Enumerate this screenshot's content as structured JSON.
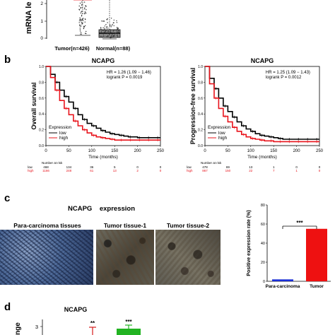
{
  "panel_labels": {
    "b": "b",
    "c": "c",
    "d": "d"
  },
  "colors": {
    "low": "#000000",
    "high": "#e8141c",
    "normal_box": "#222222",
    "tumor_box": "#e8141c",
    "bar_para": "#1a2fd6",
    "bar_tumor": "#ee1111",
    "d_tumor": "#d61a1a",
    "d_green": "#22b322"
  },
  "chart_data": [
    {
      "type": "box",
      "panel": "a",
      "ylabel": "mRNA le",
      "yticks": [
        "2",
        "1",
        "0"
      ],
      "categories": [
        "Tumor(n=426)",
        "Normal(n=88)"
      ]
    },
    {
      "type": "line",
      "panel": "b-left",
      "title": "NCAPG",
      "ylabel": "Overall survival",
      "xlabel": "Time (months)",
      "xlim": [
        0,
        250
      ],
      "ylim": [
        0,
        1
      ],
      "xticks": [
        "0",
        "50",
        "100",
        "150",
        "200",
        "250"
      ],
      "yticks": [
        "0.0",
        "0.2",
        "0.4",
        "0.6",
        "0.8",
        "1.0"
      ],
      "annotations": [
        "HR = 1.26 (1.09 − 1.46)",
        "logrank P = 0.0019"
      ],
      "legend_title": "Expression",
      "series": [
        {
          "name": "low",
          "x": [
            0,
            10,
            20,
            30,
            40,
            50,
            60,
            70,
            80,
            90,
            100,
            110,
            120,
            130,
            140,
            150,
            160,
            170,
            180,
            190,
            200,
            210,
            220,
            230,
            240,
            250
          ],
          "y": [
            1.0,
            0.9,
            0.8,
            0.7,
            0.62,
            0.55,
            0.47,
            0.39,
            0.33,
            0.28,
            0.25,
            0.22,
            0.19,
            0.17,
            0.15,
            0.14,
            0.13,
            0.12,
            0.11,
            0.11,
            0.1,
            0.1,
            0.1,
            0.1,
            0.1,
            0.1
          ]
        },
        {
          "name": "high",
          "x": [
            0,
            10,
            20,
            30,
            40,
            50,
            60,
            70,
            80,
            90,
            100,
            110,
            120,
            130,
            140,
            150,
            160,
            170,
            180,
            190,
            200,
            210,
            220,
            230,
            240,
            250
          ],
          "y": [
            1.0,
            0.86,
            0.7,
            0.57,
            0.47,
            0.39,
            0.31,
            0.25,
            0.2,
            0.16,
            0.13,
            0.11,
            0.1,
            0.09,
            0.08,
            0.07,
            0.07,
            0.07,
            0.07,
            0.07,
            0.07,
            0.07,
            0.07,
            0.07,
            0.07,
            0.07
          ]
        }
      ],
      "risk_table": {
        "header": "Number at risk",
        "rows": [
          {
            "label": "low",
            "values": [
              "468",
              "134",
              "36",
              "5",
              "0",
              "0"
            ]
          },
          {
            "label": "high",
            "values": [
              "1166",
              "248",
              "61",
              "13",
              "2",
              "0"
            ]
          }
        ]
      }
    },
    {
      "type": "line",
      "panel": "b-right",
      "title": "NCAPG",
      "ylabel": "Progression-free survival",
      "xlabel": "Time (months)",
      "xlim": [
        0,
        250
      ],
      "ylim": [
        0,
        1
      ],
      "xticks": [
        "0",
        "50",
        "100",
        "150",
        "200",
        "250"
      ],
      "yticks": [
        "0.0",
        "0.2",
        "0.4",
        "0.6",
        "0.8",
        "1.0"
      ],
      "annotations": [
        "HR = 1.25 (1.09 − 1.43)",
        "logrank P = 0.0012"
      ],
      "legend_title": "Expression",
      "series": [
        {
          "name": "low",
          "x": [
            0,
            10,
            20,
            30,
            40,
            50,
            60,
            70,
            80,
            90,
            100,
            110,
            120,
            130,
            140,
            150,
            160,
            170,
            180,
            190,
            200,
            210,
            220,
            230,
            240,
            250
          ],
          "y": [
            1.0,
            0.85,
            0.72,
            0.6,
            0.5,
            0.43,
            0.36,
            0.3,
            0.25,
            0.21,
            0.18,
            0.15,
            0.13,
            0.12,
            0.11,
            0.1,
            0.09,
            0.08,
            0.08,
            0.08,
            0.08,
            0.08,
            0.08,
            0.08,
            0.08,
            0.08
          ]
        },
        {
          "name": "high",
          "x": [
            0,
            10,
            20,
            30,
            40,
            50,
            60,
            70,
            80,
            90,
            100,
            110,
            120,
            130,
            140,
            150,
            160,
            170,
            180,
            190,
            200,
            210,
            220,
            230,
            240,
            250
          ],
          "y": [
            1.0,
            0.78,
            0.6,
            0.47,
            0.37,
            0.3,
            0.23,
            0.18,
            0.14,
            0.11,
            0.09,
            0.08,
            0.07,
            0.06,
            0.06,
            0.05,
            0.05,
            0.05,
            0.05,
            0.05,
            0.05,
            0.05,
            0.05,
            0.05,
            0.05,
            0.05
          ]
        }
      ],
      "risk_table": {
        "header": "Number at risk",
        "rows": [
          {
            "label": "low",
            "values": [
              "478",
              "69",
              "13",
              "1",
              "0",
              "0"
            ]
          },
          {
            "label": "high",
            "values": [
              "867",
              "150",
              "22",
              "7",
              "1",
              "0"
            ]
          }
        ]
      }
    },
    {
      "type": "bar",
      "panel": "c-right",
      "ylabel": "Positive expression rate (%)",
      "categories": [
        "Para-carcinoma",
        "Tumor"
      ],
      "values": [
        2,
        55
      ],
      "ylim": [
        0,
        80
      ],
      "yticks": [
        "0",
        "20",
        "40",
        "60",
        "80"
      ],
      "significance": "***"
    },
    {
      "type": "bar",
      "panel": "d",
      "title": "NCAPG",
      "ylabel": "nge",
      "yticks": [
        "3"
      ],
      "significance": [
        "**",
        "***"
      ]
    }
  ],
  "panel_c": {
    "header": "NCAPG    expression",
    "photos": [
      {
        "label": "Para-carcinoma tissues"
      },
      {
        "label": "Tumor tissue-1"
      },
      {
        "label": "Tumor tissue-2"
      }
    ]
  }
}
